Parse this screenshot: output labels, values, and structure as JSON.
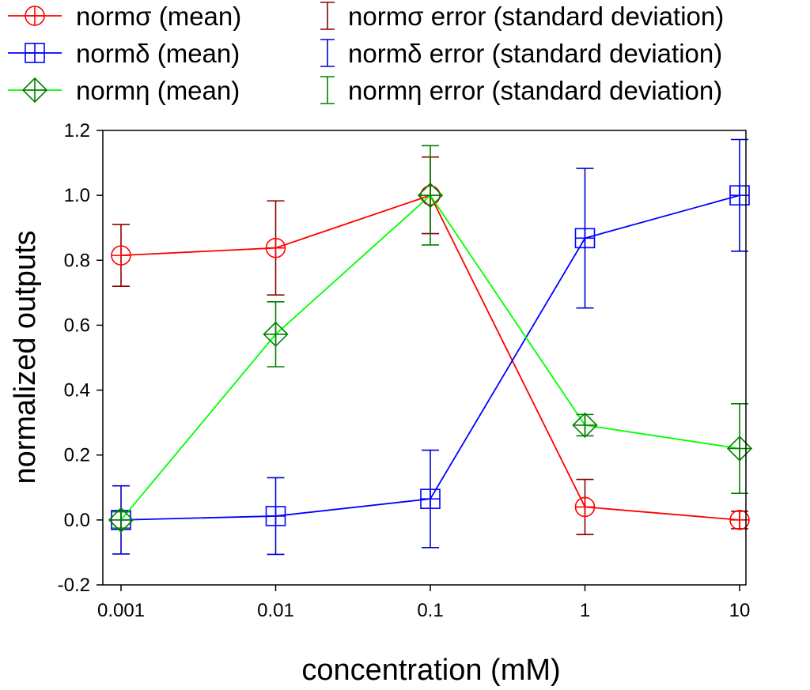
{
  "chart_data": {
    "type": "line",
    "xlabel": "concentration (mM)",
    "ylabel": "normalized outputs",
    "x_scale": "log",
    "xlim": [
      0.001,
      10
    ],
    "ylim": [
      -0.2,
      1.2
    ],
    "x_ticks": [
      "0.001",
      "0.01",
      "0.1",
      "1",
      "10"
    ],
    "y_ticks": [
      "-0.2",
      "0.0",
      "0.2",
      "0.4",
      "0.6",
      "0.8",
      "1.0",
      "1.2"
    ],
    "grid": false,
    "legend_position": "top",
    "x": [
      0.001,
      0.01,
      0.1,
      1,
      10
    ],
    "series": [
      {
        "name": "normσ (mean)",
        "error_name": "normσ error (standard deviation)",
        "marker": "circle-plus",
        "line_color": "#ff0000",
        "marker_color": "#ff0000",
        "error_color": "#8b0000",
        "values": [
          0.815,
          0.838,
          1.0,
          0.04,
          0.0
        ],
        "errors": [
          0.095,
          0.145,
          0.118,
          0.085,
          0.027
        ]
      },
      {
        "name": "normδ (mean)",
        "error_name": "normδ error (standard deviation)",
        "marker": "square-plus",
        "line_color": "#0000ff",
        "marker_color": "#0000ff",
        "error_color": "#0000cd",
        "values": [
          0.0,
          0.012,
          0.065,
          0.868,
          1.0
        ],
        "errors": [
          0.105,
          0.118,
          0.15,
          0.215,
          0.172
        ]
      },
      {
        "name": "normη (mean)",
        "error_name": "normη error (standard deviation)",
        "marker": "diamond-plus",
        "line_color": "#00ff00",
        "marker_color": "#008000",
        "error_color": "#008000",
        "values": [
          0.0,
          0.572,
          1.0,
          0.292,
          0.22
        ],
        "errors": [
          0.025,
          0.1,
          0.153,
          0.033,
          0.138
        ]
      }
    ]
  }
}
